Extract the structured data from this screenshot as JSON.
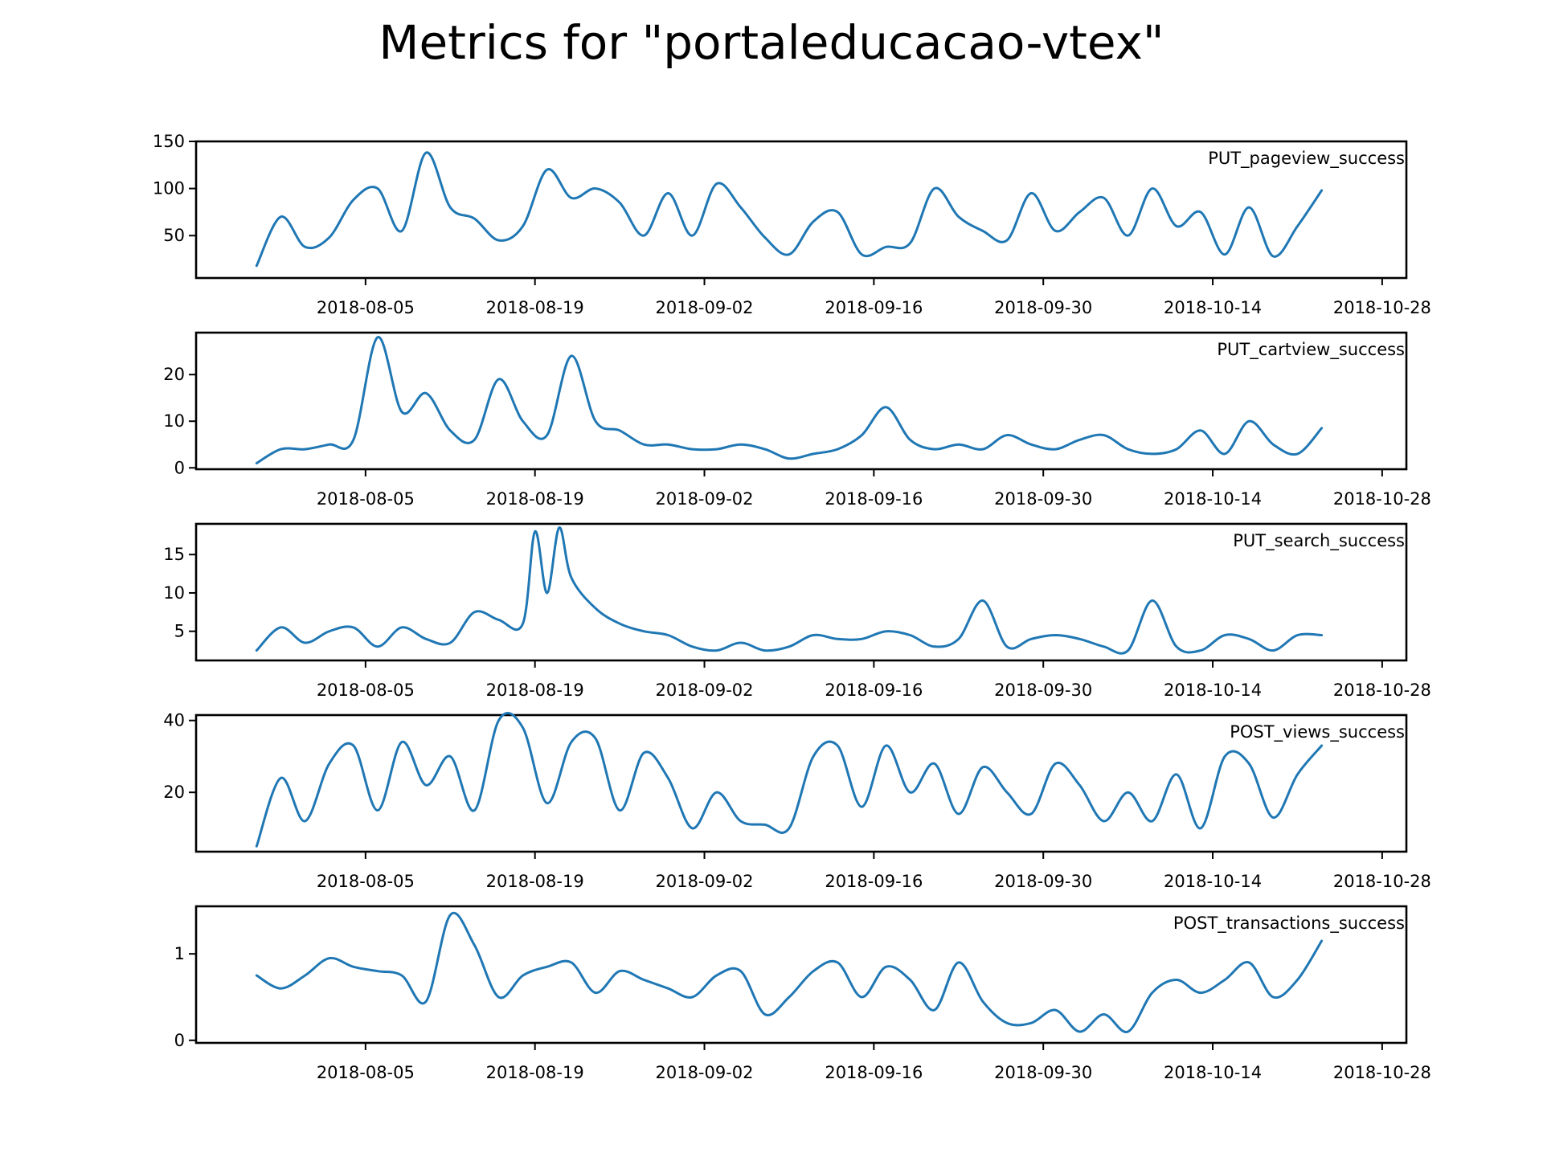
{
  "figure": {
    "title": "Metrics for \"portaleducacao-vtex\"",
    "line_color": "#1f77b4"
  },
  "chart_data": [
    {
      "type": "line",
      "series": [
        {
          "name": "PUT_pageview_success"
        }
      ],
      "x_ticks": [
        "2018-08-05",
        "2018-08-19",
        "2018-09-02",
        "2018-09-16",
        "2018-09-30",
        "2018-10-14",
        "2018-10-28"
      ],
      "y_ticks": [
        50,
        100,
        150
      ],
      "ylim": [
        5,
        150
      ],
      "xlim": [
        "2018-07-22",
        "2018-10-30"
      ],
      "x": [
        "2018-07-27",
        "2018-07-29",
        "2018-07-31",
        "2018-08-02",
        "2018-08-04",
        "2018-08-06",
        "2018-08-08",
        "2018-08-10",
        "2018-08-12",
        "2018-08-14",
        "2018-08-16",
        "2018-08-18",
        "2018-08-20",
        "2018-08-22",
        "2018-08-24",
        "2018-08-26",
        "2018-08-28",
        "2018-08-30",
        "2018-09-01",
        "2018-09-03",
        "2018-09-05",
        "2018-09-07",
        "2018-09-09",
        "2018-09-11",
        "2018-09-13",
        "2018-09-15",
        "2018-09-17",
        "2018-09-19",
        "2018-09-21",
        "2018-09-23",
        "2018-09-25",
        "2018-09-27",
        "2018-09-29",
        "2018-10-01",
        "2018-10-03",
        "2018-10-05",
        "2018-10-07",
        "2018-10-09",
        "2018-10-11",
        "2018-10-13",
        "2018-10-15",
        "2018-10-17",
        "2018-10-19",
        "2018-10-21",
        "2018-10-23"
      ],
      "values": [
        18,
        70,
        38,
        48,
        88,
        100,
        55,
        138,
        80,
        68,
        45,
        60,
        120,
        90,
        100,
        85,
        50,
        95,
        50,
        105,
        80,
        48,
        30,
        65,
        75,
        30,
        38,
        42,
        100,
        70,
        55,
        45,
        95,
        55,
        75,
        90,
        50,
        100,
        60,
        75,
        30,
        80,
        28,
        60,
        98
      ]
    },
    {
      "type": "line",
      "series": [
        {
          "name": "PUT_cartview_success"
        }
      ],
      "x_ticks": [
        "2018-08-05",
        "2018-08-19",
        "2018-09-02",
        "2018-09-16",
        "2018-09-30",
        "2018-10-14",
        "2018-10-28"
      ],
      "y_ticks": [
        0,
        10,
        20
      ],
      "ylim": [
        -0.3,
        29
      ],
      "xlim": [
        "2018-07-22",
        "2018-10-30"
      ],
      "x": [
        "2018-07-27",
        "2018-07-29",
        "2018-07-31",
        "2018-08-02",
        "2018-08-04",
        "2018-08-06",
        "2018-08-08",
        "2018-08-10",
        "2018-08-12",
        "2018-08-14",
        "2018-08-16",
        "2018-08-18",
        "2018-08-20",
        "2018-08-22",
        "2018-08-24",
        "2018-08-26",
        "2018-08-28",
        "2018-08-30",
        "2018-09-01",
        "2018-09-03",
        "2018-09-05",
        "2018-09-07",
        "2018-09-09",
        "2018-09-11",
        "2018-09-13",
        "2018-09-15",
        "2018-09-17",
        "2018-09-19",
        "2018-09-21",
        "2018-09-23",
        "2018-09-25",
        "2018-09-27",
        "2018-09-29",
        "2018-10-01",
        "2018-10-03",
        "2018-10-05",
        "2018-10-07",
        "2018-10-09",
        "2018-10-11",
        "2018-10-13",
        "2018-10-15",
        "2018-10-17",
        "2018-10-19",
        "2018-10-21",
        "2018-10-23"
      ],
      "values": [
        1,
        4,
        4,
        5,
        6,
        28,
        12,
        16,
        8,
        6,
        19,
        10,
        7,
        24,
        10,
        8,
        5,
        5,
        4,
        4,
        5,
        4,
        2,
        3,
        4,
        7,
        13,
        6,
        4,
        5,
        4,
        7,
        5,
        4,
        6,
        7,
        4,
        3,
        4,
        8,
        3,
        10,
        5,
        3,
        8.5
      ]
    },
    {
      "type": "line",
      "series": [
        {
          "name": "PUT_search_success"
        }
      ],
      "x_ticks": [
        "2018-08-05",
        "2018-08-19",
        "2018-09-02",
        "2018-09-16",
        "2018-09-30",
        "2018-10-14",
        "2018-10-28"
      ],
      "y_ticks": [
        5,
        10,
        15
      ],
      "ylim": [
        1.2,
        19
      ],
      "xlim": [
        "2018-07-22",
        "2018-10-30"
      ],
      "x": [
        "2018-07-27",
        "2018-07-29",
        "2018-07-31",
        "2018-08-02",
        "2018-08-04",
        "2018-08-06",
        "2018-08-08",
        "2018-08-10",
        "2018-08-12",
        "2018-08-14",
        "2018-08-16",
        "2018-08-18",
        "2018-08-19",
        "2018-08-20",
        "2018-08-21",
        "2018-08-22",
        "2018-08-24",
        "2018-08-26",
        "2018-08-28",
        "2018-08-30",
        "2018-09-01",
        "2018-09-03",
        "2018-09-05",
        "2018-09-07",
        "2018-09-09",
        "2018-09-11",
        "2018-09-13",
        "2018-09-15",
        "2018-09-17",
        "2018-09-19",
        "2018-09-21",
        "2018-09-23",
        "2018-09-25",
        "2018-09-27",
        "2018-09-29",
        "2018-10-01",
        "2018-10-03",
        "2018-10-05",
        "2018-10-07",
        "2018-10-09",
        "2018-10-11",
        "2018-10-13",
        "2018-10-15",
        "2018-10-17",
        "2018-10-19",
        "2018-10-21",
        "2018-10-23"
      ],
      "values": [
        2.5,
        5.5,
        3.5,
        5,
        5.5,
        3,
        5.5,
        4,
        3.5,
        7.5,
        6.5,
        6,
        18,
        10,
        18.5,
        12,
        8,
        6,
        5,
        4.5,
        3,
        2.5,
        3.5,
        2.5,
        3,
        4.5,
        4,
        4,
        5,
        4.5,
        3,
        4,
        9,
        3,
        4,
        4.5,
        4,
        3,
        2.5,
        9,
        3,
        2.5,
        4.5,
        4,
        2.5,
        4.5,
        4.5
      ]
    },
    {
      "type": "line",
      "series": [
        {
          "name": "POST_views_success"
        }
      ],
      "x_ticks": [
        "2018-08-05",
        "2018-08-19",
        "2018-09-02",
        "2018-09-16",
        "2018-09-30",
        "2018-10-14",
        "2018-10-28"
      ],
      "y_ticks": [
        20,
        40
      ],
      "ylim": [
        3.5,
        41.5
      ],
      "xlim": [
        "2018-07-22",
        "2018-10-30"
      ],
      "x": [
        "2018-07-27",
        "2018-07-29",
        "2018-07-31",
        "2018-08-02",
        "2018-08-04",
        "2018-08-06",
        "2018-08-08",
        "2018-08-10",
        "2018-08-12",
        "2018-08-14",
        "2018-08-16",
        "2018-08-18",
        "2018-08-20",
        "2018-08-22",
        "2018-08-24",
        "2018-08-26",
        "2018-08-28",
        "2018-08-30",
        "2018-09-01",
        "2018-09-03",
        "2018-09-05",
        "2018-09-07",
        "2018-09-09",
        "2018-09-11",
        "2018-09-13",
        "2018-09-15",
        "2018-09-17",
        "2018-09-19",
        "2018-09-21",
        "2018-09-23",
        "2018-09-25",
        "2018-09-27",
        "2018-09-29",
        "2018-10-01",
        "2018-10-03",
        "2018-10-05",
        "2018-10-07",
        "2018-10-09",
        "2018-10-11",
        "2018-10-13",
        "2018-10-15",
        "2018-10-17",
        "2018-10-19",
        "2018-10-21",
        "2018-10-23"
      ],
      "values": [
        5,
        24,
        12,
        28,
        33,
        15,
        34,
        22,
        30,
        15,
        40,
        38,
        17,
        34,
        35,
        15,
        31,
        24,
        10,
        20,
        12,
        11,
        10,
        30,
        33,
        16,
        33,
        20,
        28,
        14,
        27,
        20,
        14,
        28,
        22,
        12,
        20,
        12,
        25,
        10,
        30,
        28,
        13,
        25,
        33
      ]
    },
    {
      "type": "line",
      "series": [
        {
          "name": "POST_transactions_success"
        }
      ],
      "x_ticks": [
        "2018-08-05",
        "2018-08-19",
        "2018-09-02",
        "2018-09-16",
        "2018-09-30",
        "2018-10-14",
        "2018-10-28"
      ],
      "y_ticks": [
        0,
        1
      ],
      "ylim": [
        -0.03,
        1.55
      ],
      "xlim": [
        "2018-07-22",
        "2018-10-30"
      ],
      "x": [
        "2018-07-27",
        "2018-07-29",
        "2018-07-31",
        "2018-08-02",
        "2018-08-04",
        "2018-08-06",
        "2018-08-08",
        "2018-08-10",
        "2018-08-12",
        "2018-08-14",
        "2018-08-16",
        "2018-08-18",
        "2018-08-20",
        "2018-08-22",
        "2018-08-24",
        "2018-08-26",
        "2018-08-28",
        "2018-08-30",
        "2018-09-01",
        "2018-09-03",
        "2018-09-05",
        "2018-09-07",
        "2018-09-09",
        "2018-09-11",
        "2018-09-13",
        "2018-09-15",
        "2018-09-17",
        "2018-09-19",
        "2018-09-21",
        "2018-09-23",
        "2018-09-25",
        "2018-09-27",
        "2018-09-29",
        "2018-10-01",
        "2018-10-03",
        "2018-10-05",
        "2018-10-07",
        "2018-10-09",
        "2018-10-11",
        "2018-10-13",
        "2018-10-15",
        "2018-10-17",
        "2018-10-19",
        "2018-10-21",
        "2018-10-23"
      ],
      "values": [
        0.75,
        0.6,
        0.75,
        0.95,
        0.85,
        0.8,
        0.75,
        0.45,
        1.45,
        1.1,
        0.5,
        0.75,
        0.85,
        0.9,
        0.55,
        0.8,
        0.7,
        0.6,
        0.5,
        0.75,
        0.8,
        0.3,
        0.5,
        0.8,
        0.9,
        0.5,
        0.85,
        0.7,
        0.35,
        0.9,
        0.45,
        0.2,
        0.2,
        0.35,
        0.1,
        0.3,
        0.1,
        0.55,
        0.7,
        0.55,
        0.7,
        0.9,
        0.5,
        0.7,
        1.15
      ]
    }
  ]
}
